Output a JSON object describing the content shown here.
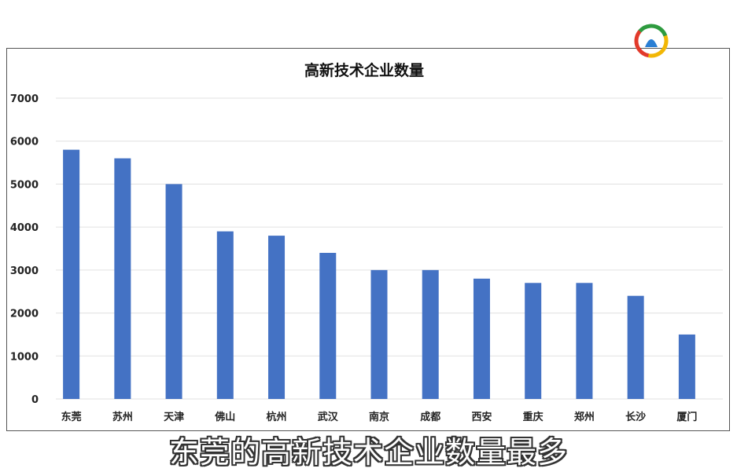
{
  "chart_data": {
    "type": "bar",
    "title": "高新技术企业数量",
    "categories": [
      "东莞",
      "苏州",
      "天津",
      "佛山",
      "杭州",
      "武汉",
      "南京",
      "成都",
      "西安",
      "重庆",
      "郑州",
      "长沙",
      "厦门"
    ],
    "values": [
      5800,
      5600,
      5000,
      3900,
      3800,
      3400,
      3000,
      3000,
      2800,
      2700,
      2700,
      2400,
      1500
    ],
    "yticks": [
      0,
      1000,
      2000,
      3000,
      4000,
      5000,
      6000,
      7000
    ],
    "ylim": [
      0,
      7000
    ],
    "grid": true,
    "bar_color": "#4472C4"
  },
  "caption": "东莞的高新技术企业数量最多",
  "logo": {
    "icon": "news-app-logo-icon"
  }
}
